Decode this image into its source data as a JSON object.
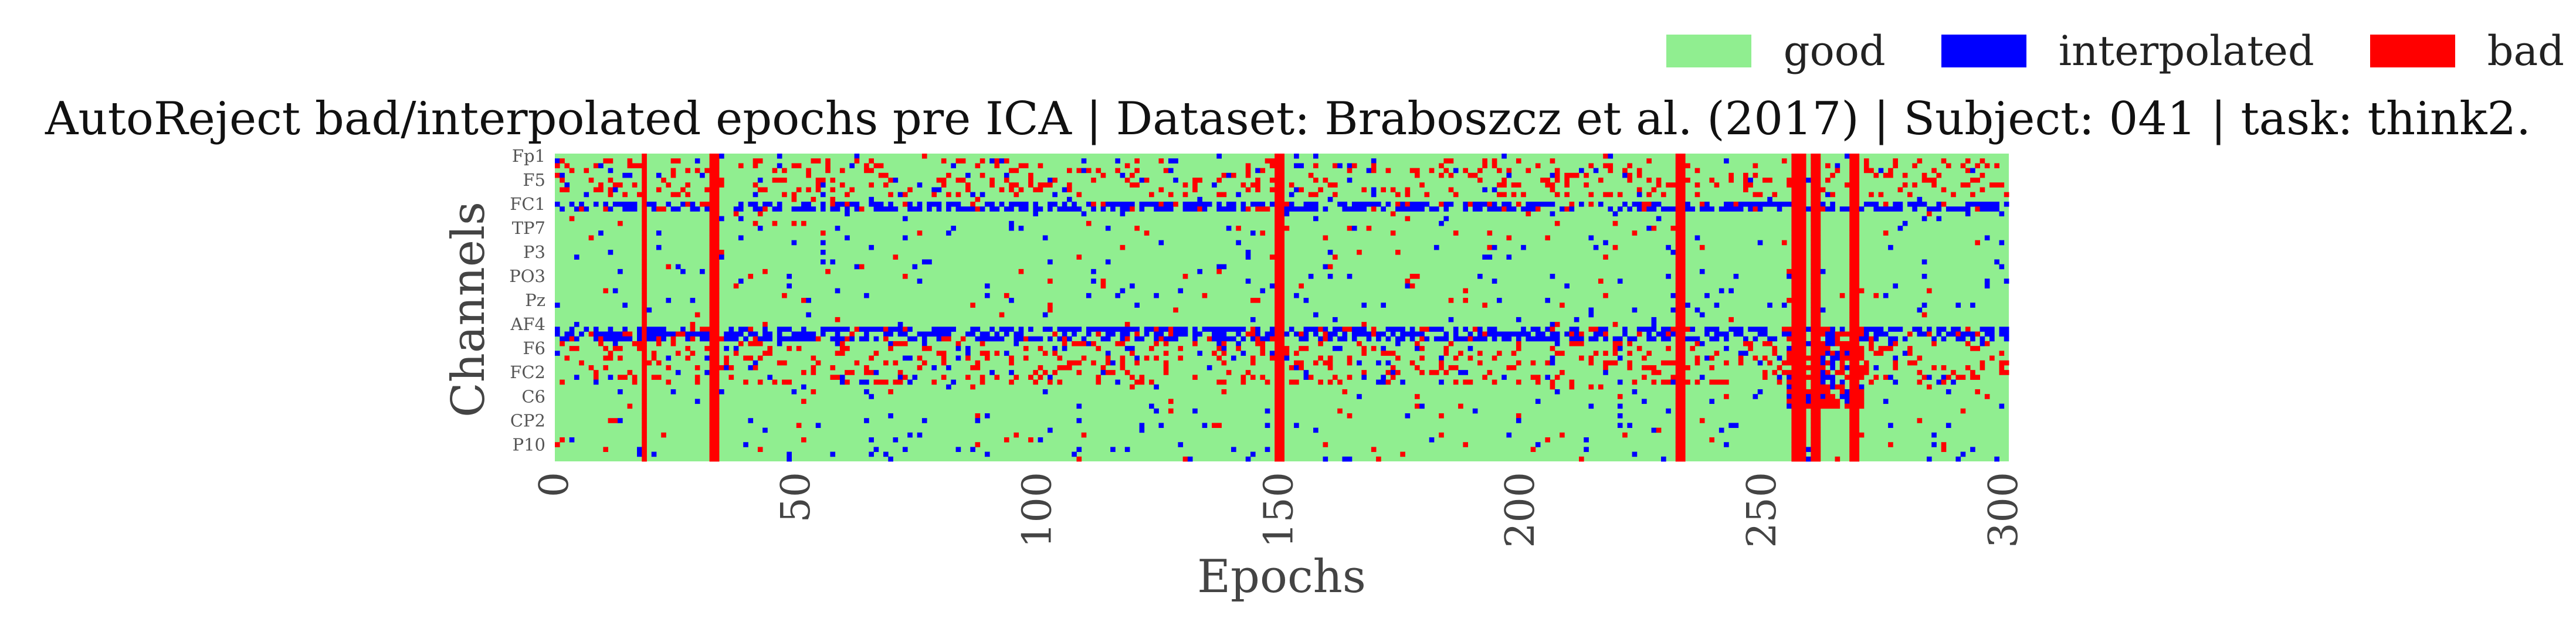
{
  "chart_data": {
    "type": "heatmap",
    "title": "AutoReject bad/interpolated epochs pre ICA | Dataset: Braboszcz et al. (2017) | Subject: 041 | task: think2.",
    "xlabel": "Epochs",
    "ylabel": "Channels",
    "xlim": [
      0,
      301
    ],
    "x_ticks": [
      0,
      50,
      100,
      150,
      200,
      250,
      300
    ],
    "n_epochs": 301,
    "n_channels": 64,
    "y_tick_labels": [
      "Fp1",
      "F5",
      "FC1",
      "TP7",
      "P3",
      "PO3",
      "Pz",
      "AF4",
      "F6",
      "FC2",
      "C6",
      "CP2",
      "P10"
    ],
    "y_tick_channel_index": [
      0,
      5,
      10,
      15,
      20,
      25,
      30,
      35,
      40,
      45,
      50,
      55,
      60
    ],
    "legend": [
      {
        "label": "good",
        "color": "#90EE90"
      },
      {
        "label": "interpolated",
        "color": "#0000FF"
      },
      {
        "label": "bad",
        "color": "#FF0000"
      }
    ],
    "legend_placement": "top-right",
    "colors": {
      "good": "#90EE90",
      "interpolated": "#0000FF",
      "bad": "#FF0000"
    },
    "bad_epochs": [
      18,
      32,
      33,
      149,
      150,
      232,
      233,
      256,
      257,
      258,
      260,
      261,
      268,
      269
    ],
    "interpolated_channel_rows": [
      10,
      11,
      36,
      37,
      38
    ],
    "bad_region_rows": [
      [
        1,
        8
      ],
      [
        39,
        47
      ]
    ],
    "dense_cluster_epochs": [
      255,
      270
    ]
  }
}
